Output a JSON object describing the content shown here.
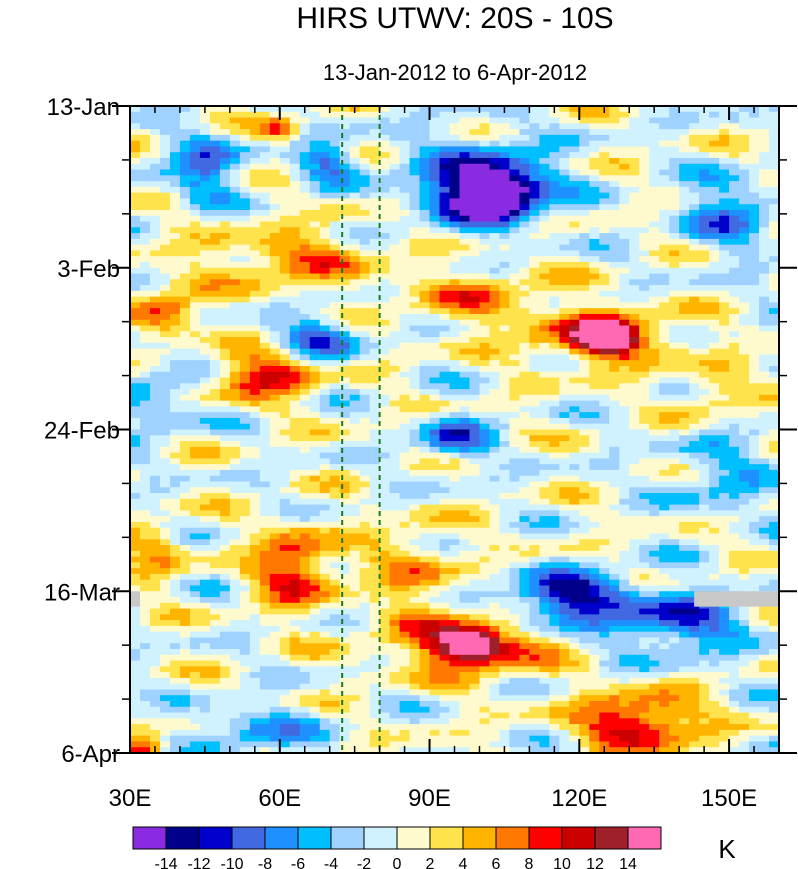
{
  "chart_data": {
    "type": "heatmap",
    "title": "HIRS UTWV: 20S - 10S",
    "subtitle": "13-Jan-2012 to 6-Apr-2012",
    "xlabel": "",
    "ylabel": "",
    "units": "K",
    "x_range": [
      30,
      160
    ],
    "x_ticks": [
      {
        "value": 30,
        "label": "30E"
      },
      {
        "value": 60,
        "label": "60E"
      },
      {
        "value": 90,
        "label": "90E"
      },
      {
        "value": 120,
        "label": "120E"
      },
      {
        "value": 150,
        "label": "150E"
      }
    ],
    "y_range_days": [
      0,
      84
    ],
    "y_ticks": [
      {
        "day": 0,
        "label": "13-Jan"
      },
      {
        "day": 21,
        "label": "3-Feb"
      },
      {
        "day": 42,
        "label": "24-Feb"
      },
      {
        "day": 63,
        "label": "16-Mar"
      },
      {
        "day": 84,
        "label": "6-Apr"
      }
    ],
    "reference_lines_lon": [
      72.5,
      80
    ],
    "colorbar": {
      "colors": [
        "#8a2be2",
        "#00008b",
        "#0000cd",
        "#4169e1",
        "#1e90ff",
        "#00bfff",
        "#a0d2ff",
        "#d0f2ff",
        "#fffacd",
        "#ffe34d",
        "#ffb400",
        "#ff7800",
        "#ff0000",
        "#cd0000",
        "#a0202a",
        "#ff69b4"
      ],
      "labels": [
        "-14",
        "-12",
        "-10",
        "-8",
        "-6",
        "-4",
        "-2",
        "0",
        "2",
        "4",
        "6",
        "8",
        "10",
        "12",
        "14"
      ]
    },
    "features": [
      {
        "lon": 103,
        "day": 11.5,
        "value": -16,
        "sx": 8,
        "sy": 3
      },
      {
        "lon": 100,
        "day": 10,
        "value": -11,
        "sx": 14,
        "sy": 5.5
      },
      {
        "lon": 118,
        "day": 64,
        "value": -13,
        "sx": 12,
        "sy": 3.5
      },
      {
        "lon": 140,
        "day": 67,
        "value": -10,
        "sx": 12,
        "sy": 4
      },
      {
        "lon": 45,
        "day": 8,
        "value": -8,
        "sx": 8,
        "sy": 4
      },
      {
        "lon": 70,
        "day": 7,
        "value": -8,
        "sx": 6,
        "sy": 2.5
      },
      {
        "lon": 68,
        "day": 30,
        "value": -8,
        "sx": 8,
        "sy": 3
      },
      {
        "lon": 95,
        "day": 43,
        "value": -9,
        "sx": 7,
        "sy": 3
      },
      {
        "lon": 150,
        "day": 14,
        "value": -7,
        "sx": 9,
        "sy": 5
      },
      {
        "lon": 55,
        "day": 81,
        "value": -6,
        "sx": 12,
        "sy": 3
      },
      {
        "lon": 148,
        "day": 48,
        "value": -5,
        "sx": 10,
        "sy": 5
      },
      {
        "lon": 35,
        "day": 38,
        "value": -5,
        "sx": 8,
        "sy": 5
      },
      {
        "lon": 125,
        "day": 30,
        "value": 15,
        "sx": 5,
        "sy": 2
      },
      {
        "lon": 125,
        "day": 30,
        "value": 10,
        "sx": 14,
        "sy": 3.5
      },
      {
        "lon": 98,
        "day": 70,
        "value": 14,
        "sx": 6,
        "sy": 2
      },
      {
        "lon": 98,
        "day": 70,
        "value": 9,
        "sx": 16,
        "sy": 4
      },
      {
        "lon": 132,
        "day": 80,
        "value": 12,
        "sx": 12,
        "sy": 3.5
      },
      {
        "lon": 63,
        "day": 60,
        "value": 10,
        "sx": 8,
        "sy": 5
      },
      {
        "lon": 57,
        "day": 35,
        "value": 10,
        "sx": 10,
        "sy": 3
      },
      {
        "lon": 37,
        "day": 27,
        "value": 9,
        "sx": 6,
        "sy": 3
      },
      {
        "lon": 62,
        "day": 20,
        "value": 6,
        "sx": 18,
        "sy": 4
      },
      {
        "lon": 60,
        "day": 3,
        "value": 8,
        "sx": 4,
        "sy": 1.5
      },
      {
        "lon": 87,
        "day": 60,
        "value": 5,
        "sx": 9,
        "sy": 6
      },
      {
        "lon": 35,
        "day": 58,
        "value": 5,
        "sx": 6,
        "sy": 4
      },
      {
        "lon": 100,
        "day": 25,
        "value": 5,
        "sx": 15,
        "sy": 4
      },
      {
        "lon": 147,
        "day": 37,
        "value": 5,
        "sx": 6,
        "sy": 3
      },
      {
        "lon": 33,
        "day": 84,
        "value": 10,
        "sx": 4,
        "sy": 2
      }
    ],
    "missing_regions": [
      {
        "lon_start": 143,
        "lon_end": 160,
        "day_start": 63,
        "day_end": 65
      },
      {
        "lon_start": 30,
        "lon_end": 32,
        "day_start": 63,
        "day_end": 65
      }
    ]
  }
}
